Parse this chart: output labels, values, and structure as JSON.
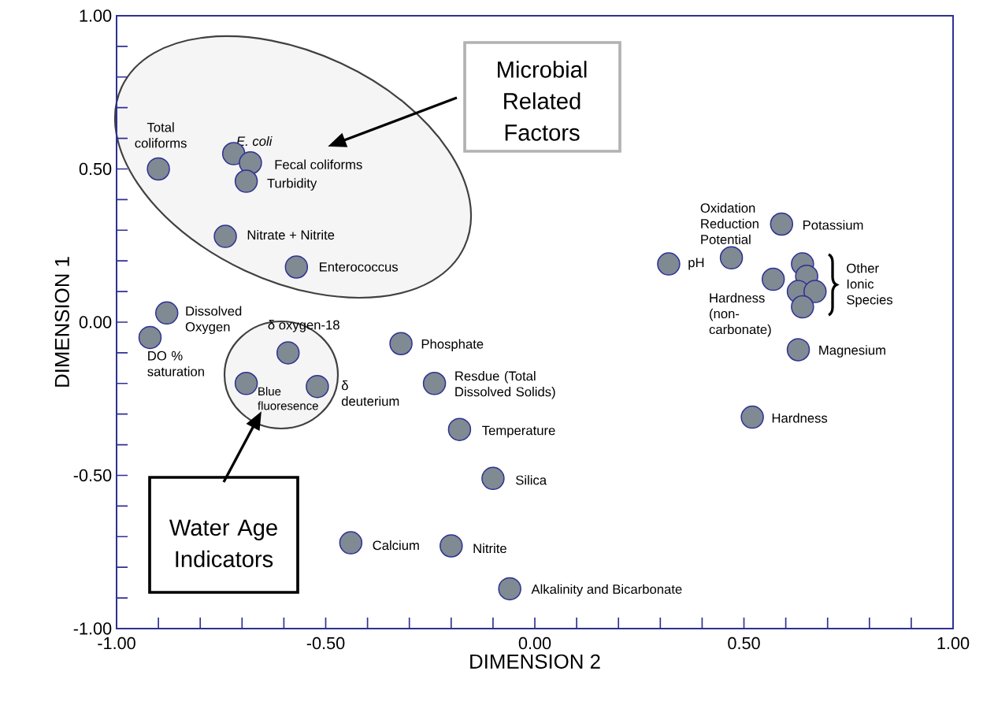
{
  "chart_data": {
    "type": "scatter",
    "xlabel": "DIMENSION 2",
    "ylabel": "DIMENSION 1",
    "x": [
      -0.9,
      -0.72,
      -0.68,
      -0.69,
      -0.74,
      -0.57,
      -0.88,
      -0.92,
      -0.59,
      -0.69,
      -0.52,
      -0.32,
      -0.24,
      -0.18,
      -0.1,
      -0.44,
      -0.2,
      -0.06,
      0.32,
      0.47,
      0.59,
      0.57,
      0.63,
      0.52,
      0.64,
      0.65,
      0.63,
      0.67,
      0.64
    ],
    "values": [
      0.5,
      0.55,
      0.52,
      0.46,
      0.28,
      0.18,
      0.03,
      -0.05,
      -0.1,
      -0.2,
      -0.21,
      -0.07,
      -0.2,
      -0.35,
      -0.51,
      -0.72,
      -0.73,
      -0.87,
      0.19,
      0.21,
      0.32,
      0.14,
      -0.09,
      -0.31,
      0.19,
      0.15,
      0.1,
      0.1,
      0.05
    ],
    "color": "#7f8a93",
    "marker": "circle",
    "xlim": [
      -1,
      1
    ],
    "ylim": [
      -1,
      1
    ],
    "xticks": [
      {
        "value": -1,
        "label": "-1.00"
      },
      {
        "value": -0.5,
        "label": "-0.50"
      },
      {
        "value": 0,
        "label": "0.00"
      },
      {
        "value": 0.5,
        "label": "0.50"
      },
      {
        "value": 1,
        "label": "1.00"
      }
    ],
    "yticks": [
      {
        "value": -1,
        "label": "-1.00"
      },
      {
        "value": -0.5,
        "label": "-0.50"
      },
      {
        "value": 0,
        "label": "0.00"
      },
      {
        "value": 0.5,
        "label": "0.50"
      },
      {
        "value": 1,
        "label": "1.00"
      }
    ],
    "annotations": [
      {
        "text": "Total coliforms",
        "x": -0.9,
        "y": 0.5
      },
      {
        "text": "E. coli",
        "x": -0.72,
        "y": 0.55
      },
      {
        "text": "Fecal coliforms",
        "x": -0.68,
        "y": 0.52
      },
      {
        "text": "Turbidity",
        "x": -0.69,
        "y": 0.46
      },
      {
        "text": "Nitrate + Nitrite",
        "x": -0.74,
        "y": 0.28
      },
      {
        "text": "Enterococcus",
        "x": -0.57,
        "y": 0.18
      },
      {
        "text": "Dissolved Oxygen",
        "x": -0.88,
        "y": 0.03
      },
      {
        "text": "DO % saturation",
        "x": -0.92,
        "y": -0.05
      },
      {
        "text": "δ oxygen-18",
        "x": -0.59,
        "y": -0.1
      },
      {
        "text": "Blue fluoresence",
        "x": -0.69,
        "y": -0.2
      },
      {
        "text": "δ deuterium",
        "x": -0.52,
        "y": -0.21
      },
      {
        "text": "Phosphate",
        "x": -0.32,
        "y": -0.07
      },
      {
        "text": "Resdue (Total Dissolved Solids)",
        "x": -0.24,
        "y": -0.2
      },
      {
        "text": "Temperature",
        "x": -0.18,
        "y": -0.35
      },
      {
        "text": "Silica",
        "x": -0.1,
        "y": -0.51
      },
      {
        "text": "Calcium",
        "x": -0.44,
        "y": -0.72
      },
      {
        "text": "Nitrite",
        "x": -0.2,
        "y": -0.73
      },
      {
        "text": "Alkalinity and Bicarbonate",
        "x": -0.06,
        "y": -0.87
      },
      {
        "text": "pH",
        "x": 0.32,
        "y": 0.19
      },
      {
        "text": "Oxidation Reduction Potential",
        "x": 0.47,
        "y": 0.21
      },
      {
        "text": "Potassium",
        "x": 0.59,
        "y": 0.32
      },
      {
        "text": "Hardness (non-carbonate)",
        "x": 0.57,
        "y": 0.14
      },
      {
        "text": "Magnesium",
        "x": 0.63,
        "y": -0.09
      },
      {
        "text": "Hardness",
        "x": 0.52,
        "y": -0.31
      },
      "Other Ionic Species",
      "Microbial Related Factors",
      "Water Age Indicators"
    ]
  }
}
